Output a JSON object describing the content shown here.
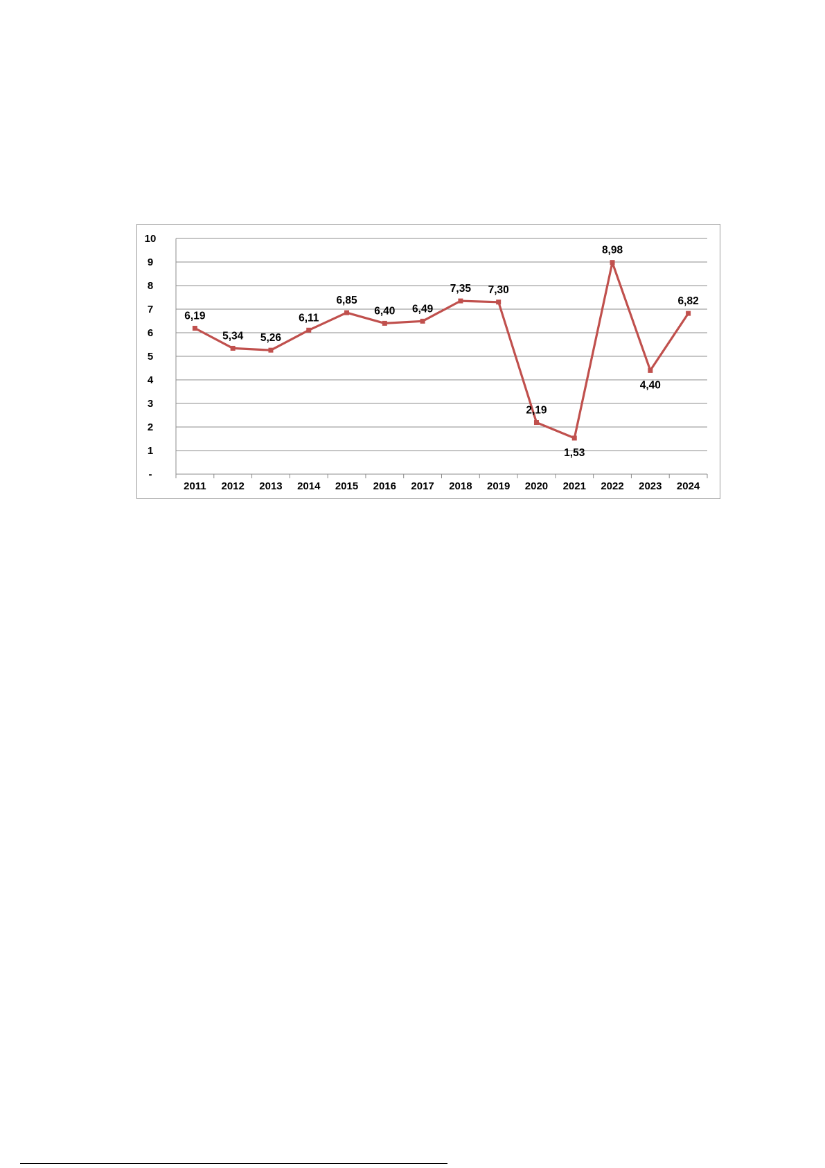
{
  "chart_data": {
    "type": "line",
    "categories": [
      "2011",
      "2012",
      "2013",
      "2014",
      "2015",
      "2016",
      "2017",
      "2018",
      "2019",
      "2020",
      "2021",
      "2022",
      "2023",
      "2024"
    ],
    "series": [
      {
        "values": [
          6.19,
          5.34,
          5.26,
          6.11,
          6.85,
          6.4,
          6.49,
          7.35,
          7.3,
          2.19,
          1.53,
          8.98,
          4.4,
          6.82
        ],
        "value_labels": [
          "6,19",
          "5,34",
          "5,26",
          "6,11",
          "6,85",
          "6,40",
          "6,49",
          "7,35",
          "7,30",
          "2,19",
          "1,53",
          "8,98",
          "4,40",
          "6,82"
        ],
        "color": "#c0504d"
      }
    ],
    "y_ticks": [
      0,
      1,
      2,
      3,
      4,
      5,
      6,
      7,
      8,
      9,
      10
    ],
    "y_tick_labels": [
      "-",
      "1",
      "2",
      "3",
      "4",
      "5",
      "6",
      "7",
      "8",
      "9",
      "10"
    ],
    "ylim": [
      0,
      10
    ],
    "grid": true,
    "legend": "none",
    "title": "",
    "xlabel": "",
    "ylabel": ""
  }
}
